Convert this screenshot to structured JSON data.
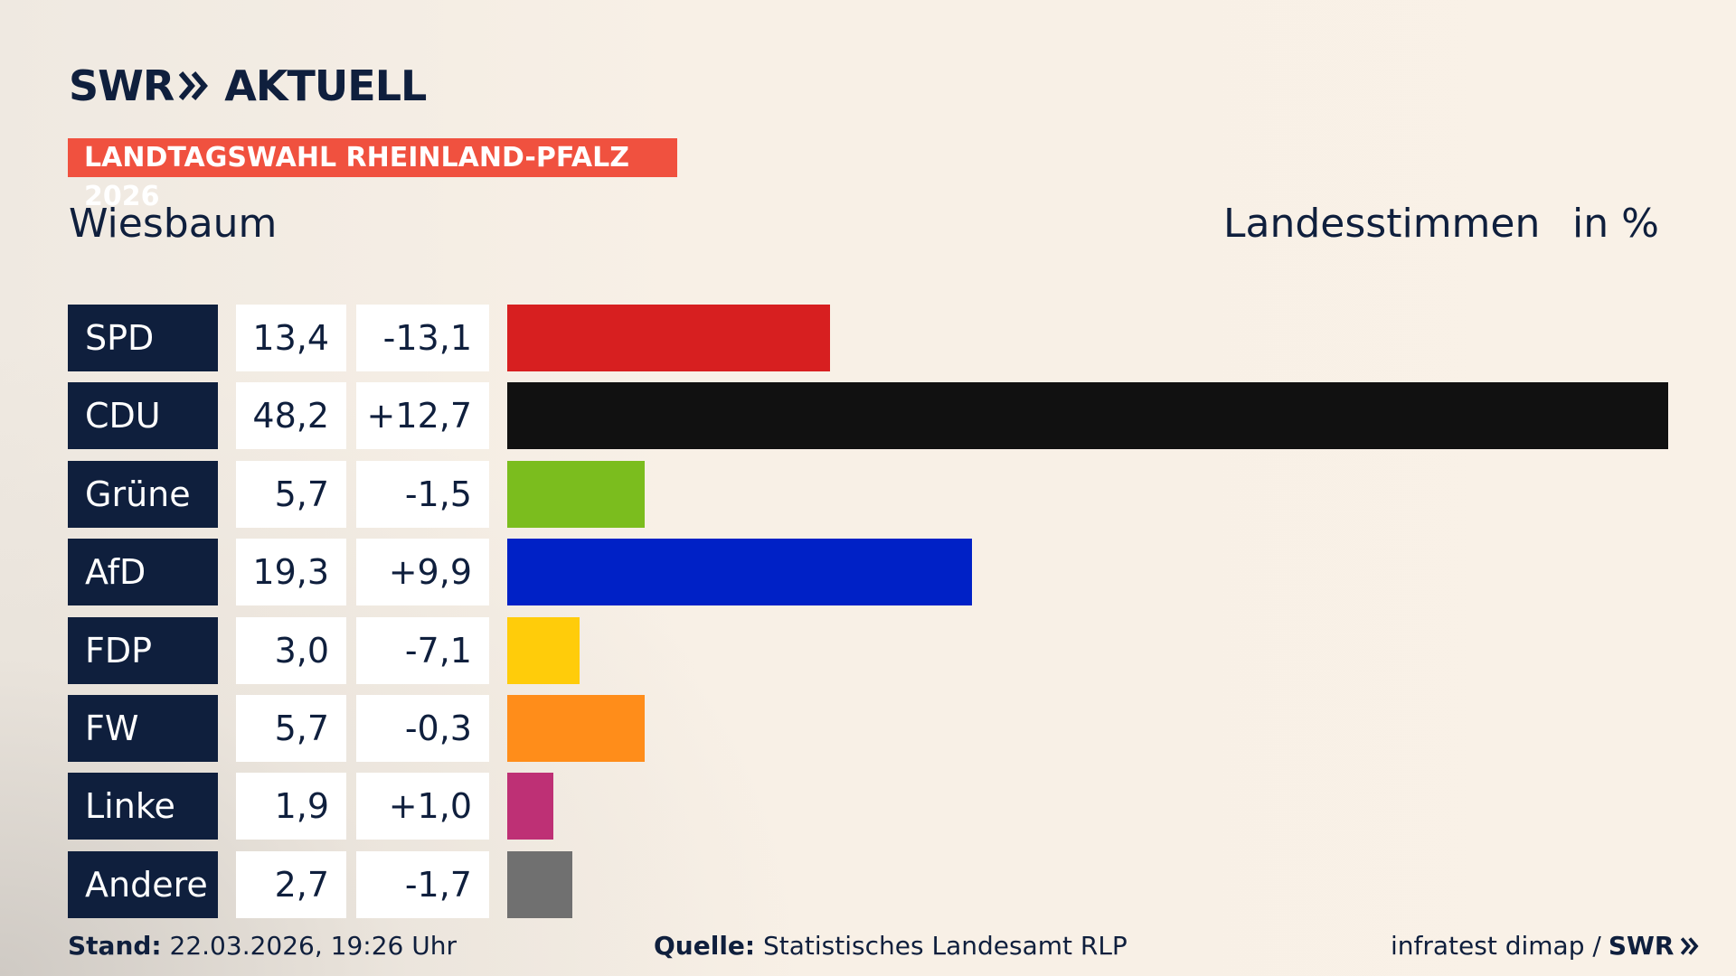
{
  "header": {
    "brand": "SWR",
    "brand_suffix": "AKTUELL",
    "banner": "LANDTAGSWAHL RHEINLAND-PFALZ 2026",
    "location": "Wiesbaum",
    "measure": "Landesstimmen",
    "unit": "in %"
  },
  "chart_data": {
    "type": "bar",
    "categories": [
      "SPD",
      "CDU",
      "Grüne",
      "AfD",
      "FDP",
      "FW",
      "Linke",
      "Andere"
    ],
    "values": [
      13.4,
      48.2,
      5.7,
      19.3,
      3.0,
      5.7,
      1.9,
      2.7
    ],
    "value_labels": [
      "13,4",
      "48,2",
      "5,7",
      "19,3",
      "3,0",
      "5,7",
      "1,9",
      "2,7"
    ],
    "changes": [
      "-13,1",
      "+12,7",
      "-1,5",
      "+9,9",
      "-7,1",
      "-0,3",
      "+1,0",
      "-1,7"
    ],
    "colors": [
      "#d71f20",
      "#111111",
      "#7bbd1e",
      "#0021c6",
      "#ffcc0a",
      "#ff8d1a",
      "#be3075",
      "#707070"
    ]
  },
  "footer": {
    "date_label": "Stand:",
    "date": "22.03.2026, 19:26 Uhr",
    "source_label": "Quelle:",
    "source": "Statistisches Landesamt RLP",
    "credit": "infratest dimap /",
    "credit_logo": "SWR"
  }
}
